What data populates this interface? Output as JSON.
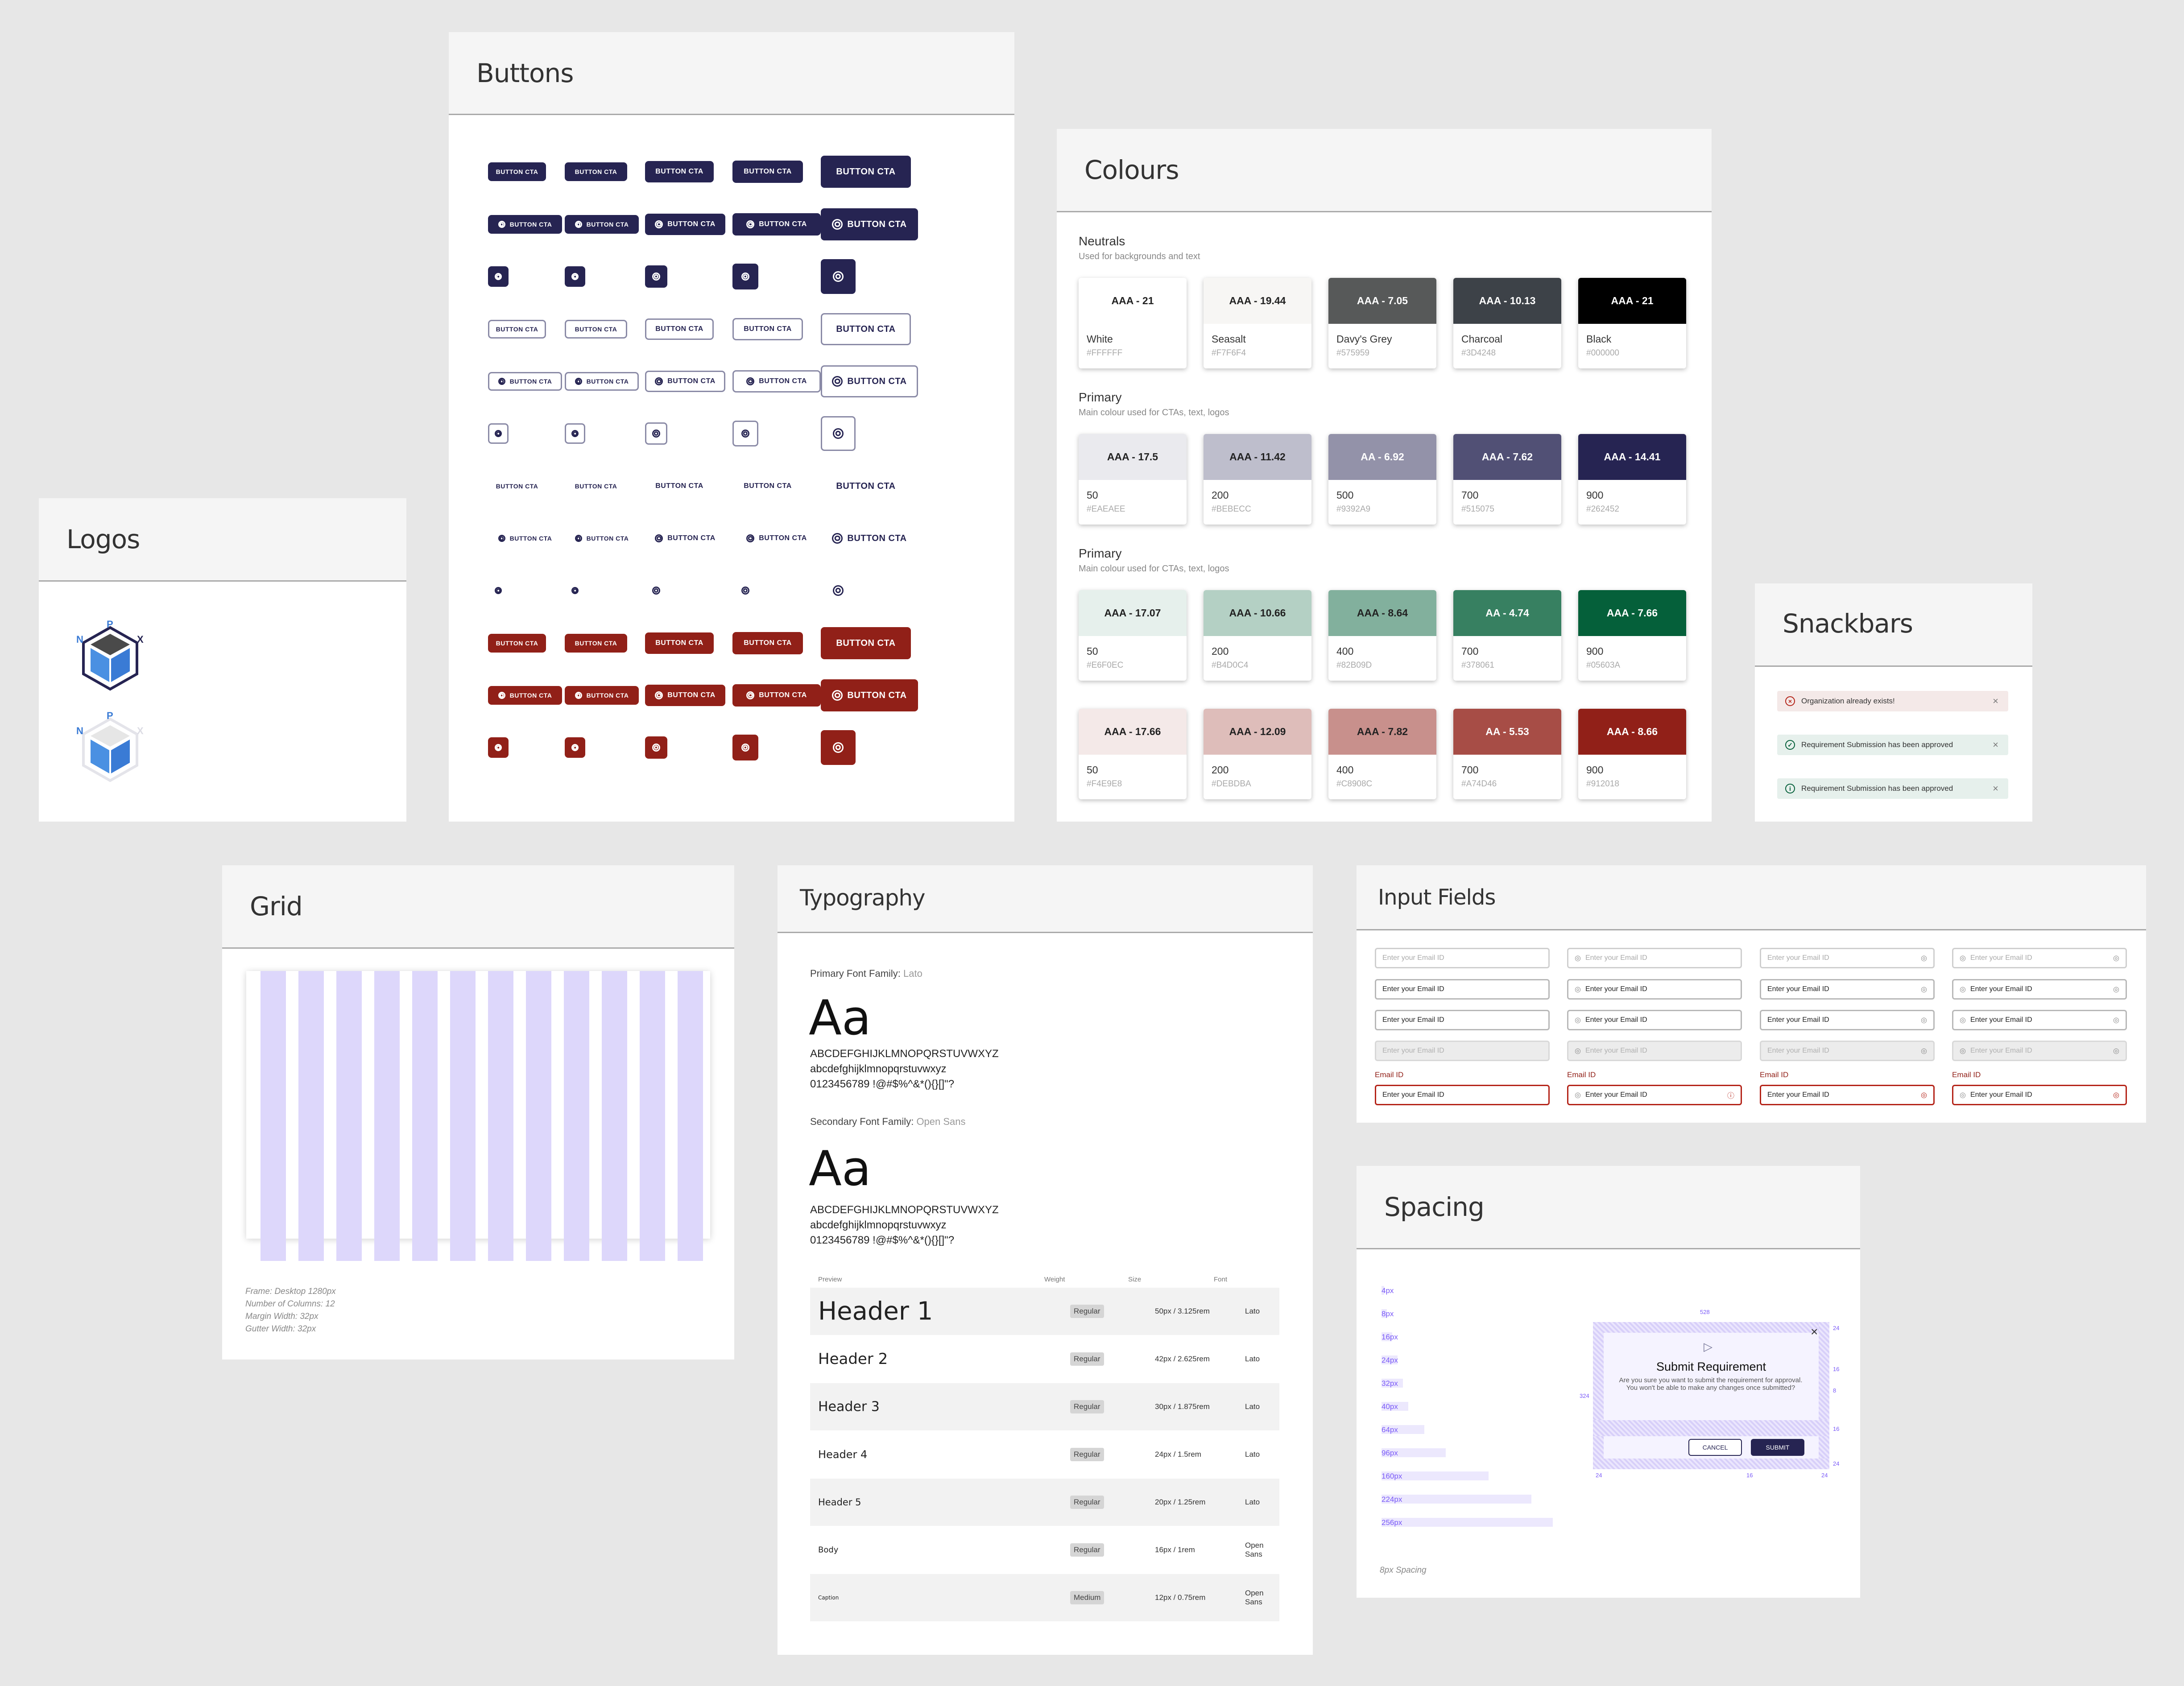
{
  "logos": {
    "title": "Logos"
  },
  "buttons": {
    "title": "Buttons",
    "label": "BUTTON CTA"
  },
  "colours": {
    "title": "Colours",
    "groups": [
      {
        "name": "Neutrals",
        "desc": "Used for backgrounds and text",
        "swatches": [
          {
            "score": "AAA - 21",
            "name": "White",
            "hex": "#FFFFFF",
            "color": "#FFFFFF",
            "fg": "#222222"
          },
          {
            "score": "AAA - 19.44",
            "name": "Seasalt",
            "hex": "#F7F6F4",
            "color": "#F7F6F4",
            "fg": "#222222"
          },
          {
            "score": "AAA - 7.05",
            "name": "Davy's Grey",
            "hex": "#575959",
            "color": "#575959",
            "fg": "#FFFFFF"
          },
          {
            "score": "AAA - 10.13",
            "name": "Charcoal",
            "hex": "#3D4248",
            "color": "#3D4248",
            "fg": "#FFFFFF"
          },
          {
            "score": "AAA - 21",
            "name": "Black",
            "hex": "#000000",
            "color": "#000000",
            "fg": "#FFFFFF"
          }
        ]
      },
      {
        "name": "Primary",
        "desc": "Main colour used for CTAs, text, logos",
        "swatches": [
          {
            "score": "AAA - 17.5",
            "name": "50",
            "hex": "#EAEAEE",
            "color": "#EAEAEE",
            "fg": "#222222"
          },
          {
            "score": "AAA - 11.42",
            "name": "200",
            "hex": "#BEBECC",
            "color": "#BEBECC",
            "fg": "#222222"
          },
          {
            "score": "AA - 6.92",
            "name": "500",
            "hex": "#9392A9",
            "color": "#9392A9",
            "fg": "#FFFFFF"
          },
          {
            "score": "AAA - 7.62",
            "name": "700",
            "hex": "#515075",
            "color": "#515075",
            "fg": "#FFFFFF"
          },
          {
            "score": "AAA - 14.41",
            "name": "900",
            "hex": "#262452",
            "color": "#262452",
            "fg": "#FFFFFF"
          }
        ]
      },
      {
        "name": "Primary",
        "desc": "Main colour used for CTAs, text, logos",
        "swatches": [
          {
            "score": "AAA - 17.07",
            "name": "50",
            "hex": "#E6F0EC",
            "color": "#E6F0EC",
            "fg": "#222222"
          },
          {
            "score": "AAA - 10.66",
            "name": "200",
            "hex": "#B4D0C4",
            "color": "#B4D0C4",
            "fg": "#222222"
          },
          {
            "score": "AAA - 8.64",
            "name": "400",
            "hex": "#82B09D",
            "color": "#82B09D",
            "fg": "#222222"
          },
          {
            "score": "AA - 4.74",
            "name": "700",
            "hex": "#378061",
            "color": "#378061",
            "fg": "#FFFFFF"
          },
          {
            "score": "AAA - 7.66",
            "name": "900",
            "hex": "#05603A",
            "color": "#05603A",
            "fg": "#FFFFFF"
          }
        ]
      },
      {
        "name": "",
        "desc": "",
        "swatches": [
          {
            "score": "AAA - 17.66",
            "name": "50",
            "hex": "#F4E9E8",
            "color": "#F4E9E8",
            "fg": "#222222"
          },
          {
            "score": "AAA - 12.09",
            "name": "200",
            "hex": "#DEBDBA",
            "color": "#DEBDBA",
            "fg": "#222222"
          },
          {
            "score": "AAA - 7.82",
            "name": "400",
            "hex": "#C8908C",
            "color": "#C8908C",
            "fg": "#222222"
          },
          {
            "score": "AA - 5.53",
            "name": "700",
            "hex": "#A74D46",
            "color": "#A74D46",
            "fg": "#FFFFFF"
          },
          {
            "score": "AAA - 8.66",
            "name": "900",
            "hex": "#912018",
            "color": "#912018",
            "fg": "#FFFFFF"
          }
        ]
      }
    ]
  },
  "snackbars": {
    "title": "Snackbars",
    "items": [
      {
        "text": "Organization already exists!",
        "bg": "#F4E9E8",
        "color": "#B42318",
        "icon": "×"
      },
      {
        "text": "Requirement Submission has been approved",
        "bg": "#E6F0EC",
        "color": "#05603A",
        "icon": "✓"
      },
      {
        "text": "Requirement Submission has been approved",
        "bg": "#E6F0EC",
        "color": "#05603A",
        "icon": "i"
      }
    ]
  },
  "grid": {
    "title": "Grid",
    "info": [
      "Frame: Desktop 1280px",
      "Number of Columns: 12",
      "Margin Width: 32px",
      "Gutter Width: 32px"
    ]
  },
  "typography": {
    "title": "Typography",
    "primary_label": "Primary Font Family:",
    "primary_font": "Lato",
    "secondary_label": "Secondary Font Family:",
    "secondary_font": "Open Sans",
    "aa": "Aa",
    "upper": "ABCDEFGHIJKLMNOPQRSTUVWXYZ",
    "lower": "abcdefghijklmnopqrstuvwxyz",
    "primary_digits": "0123456789 !@#$%^&*(){}[]\"?",
    "secondary_digits": "0123456789 !@#$%^&*(){}[]\"?",
    "headers": {
      "preview": "Preview",
      "weight": "Weight",
      "size": "Size",
      "font": "Font"
    },
    "rows": [
      {
        "preview": "Header 1",
        "weight": "Regular",
        "size": "50px / 3.125rem",
        "font": "Lato"
      },
      {
        "preview": "Header 2",
        "weight": "Regular",
        "size": "42px / 2.625rem",
        "font": "Lato"
      },
      {
        "preview": "Header 3",
        "weight": "Regular",
        "size": "30px / 1.875rem",
        "font": "Lato"
      },
      {
        "preview": "Header 4",
        "weight": "Regular",
        "size": "24px / 1.5rem",
        "font": "Lato"
      },
      {
        "preview": "Header 5",
        "weight": "Regular",
        "size": "20px / 1.25rem",
        "font": "Lato"
      },
      {
        "preview": "Body",
        "weight": "Regular",
        "size": "16px / 1rem",
        "font": "Open Sans"
      },
      {
        "preview": "Caption",
        "weight": "Medium",
        "size": "12px / 0.75rem",
        "font": "Open Sans"
      }
    ]
  },
  "inputs": {
    "title": "Input Fields",
    "placeholder": "Enter your Email ID",
    "label": "Email ID"
  },
  "spacing": {
    "title": "Spacing",
    "items": [
      "4px",
      "8px",
      "16px",
      "24px",
      "32px",
      "40px",
      "64px",
      "96px",
      "160px",
      "224px",
      "256px"
    ],
    "note": "8px Spacing",
    "modal": {
      "title": "Submit Requirement",
      "text": "Are you sure you want to submit the requirement for approval. You won't be able to make any changes once submitted?",
      "cancel": "CANCEL",
      "submit": "SUBMIT",
      "dims": {
        "width": "528",
        "height": "324",
        "top": "24",
        "gap1": "16",
        "gap2": "8",
        "gap3": "16",
        "bottom": "24",
        "left": "24",
        "mid": "16",
        "right": "24"
      }
    }
  }
}
